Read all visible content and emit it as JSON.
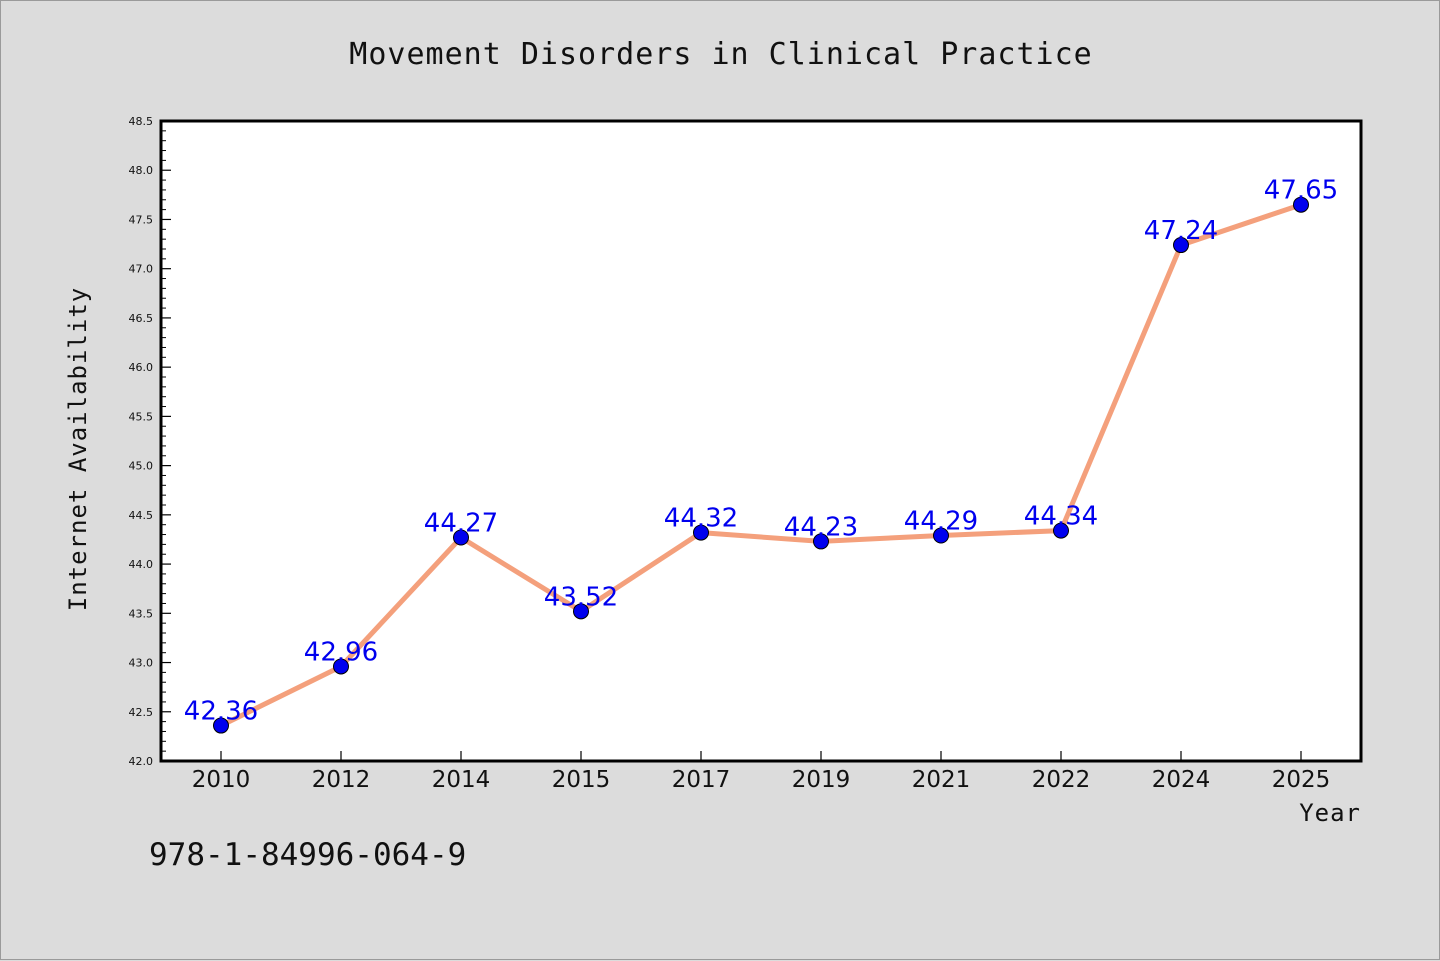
{
  "chart_data": {
    "type": "line",
    "title": "Movement Disorders in Clinical Practice",
    "xlabel": "Year",
    "ylabel": "Internet Availability",
    "categories": [
      "2010",
      "2012",
      "2014",
      "2015",
      "2017",
      "2019",
      "2021",
      "2022",
      "2024",
      "2025"
    ],
    "series": [
      {
        "values": [
          42.36,
          42.96,
          44.27,
          43.52,
          44.32,
          44.23,
          44.29,
          44.34,
          47.24,
          47.65
        ],
        "data_labels": [
          "42.36",
          "42.96",
          "44.27",
          "43.52",
          "44.32",
          "44.23",
          "44.29",
          "44.34",
          "47.24",
          "47.65"
        ],
        "line_color": "#f4a07c",
        "marker_color": "#0000ee",
        "label_color": "#0000ee"
      }
    ],
    "ylim": [
      42.0,
      48.5
    ],
    "yticks": [
      "42.0",
      "42.5",
      "43.0",
      "43.5",
      "44.0",
      "44.5",
      "45.0",
      "45.5",
      "46.0",
      "46.5",
      "47.0",
      "47.5",
      "48.0",
      "48.5"
    ],
    "grid": false,
    "legend": "none"
  },
  "footer": {
    "isbn": "978-1-84996-064-9"
  },
  "colors": {
    "background": "#dcdcdc",
    "plot_background": "#ffffff",
    "frame": "#000000"
  }
}
